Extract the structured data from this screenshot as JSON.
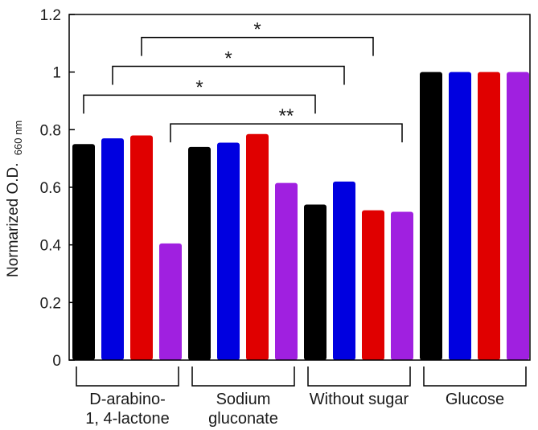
{
  "chart_data": {
    "type": "bar",
    "title": "",
    "xlabel": "",
    "ylabel": "Normarized O.D.",
    "ylabel_subscript": "660 nm",
    "ylim": [
      0,
      1.2
    ],
    "yticks": [
      "0",
      "0.2",
      "0.4",
      "0.6",
      "0.8",
      "1",
      "1.2"
    ],
    "grid": false,
    "legend": null,
    "series_colors": [
      "#000000",
      "#0000e0",
      "#e00000",
      "#a020e0"
    ],
    "categories": [
      {
        "label_lines": [
          "D-arabino-",
          "1, 4-lactone"
        ],
        "values": [
          0.75,
          0.77,
          0.78,
          0.405
        ]
      },
      {
        "label_lines": [
          "Sodium",
          "gluconate"
        ],
        "values": [
          0.74,
          0.755,
          0.785,
          0.615
        ]
      },
      {
        "label_lines": [
          "Without sugar"
        ],
        "values": [
          0.54,
          0.62,
          0.52,
          0.515
        ]
      },
      {
        "label_lines": [
          "Glucose"
        ],
        "values": [
          1.0,
          1.0,
          1.0,
          1.0
        ]
      }
    ],
    "significance": [
      {
        "label": "*",
        "from": [
          0,
          2
        ],
        "to": [
          2,
          2
        ],
        "y": 1.12
      },
      {
        "label": "*",
        "from": [
          0,
          1
        ],
        "to": [
          2,
          1
        ],
        "y": 1.02
      },
      {
        "label": "*",
        "from": [
          0,
          0
        ],
        "to": [
          2,
          0
        ],
        "y": 0.92
      },
      {
        "label": "**",
        "from": [
          0,
          3
        ],
        "to": [
          2,
          3
        ],
        "y": 0.82
      }
    ]
  }
}
